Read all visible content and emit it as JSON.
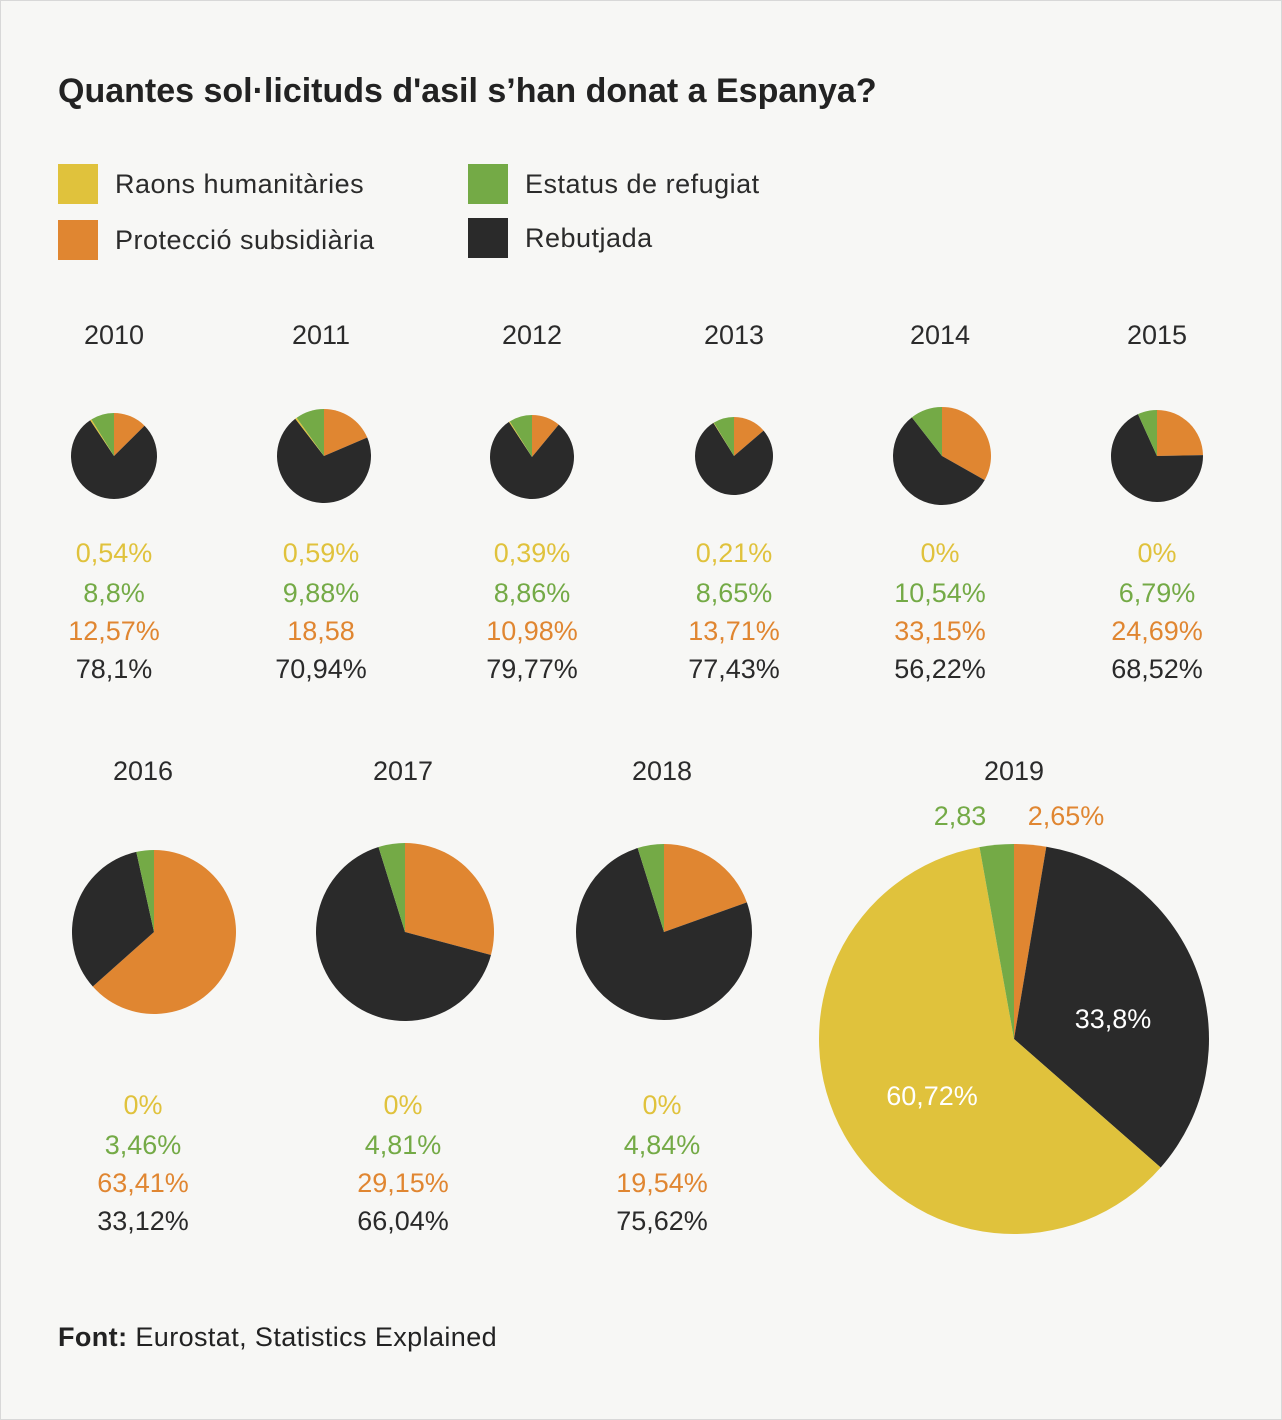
{
  "title": "Quantes sol·licituds d'asil s’han donat a Espanya?",
  "legend": [
    {
      "label": "Raons humanitàries",
      "color": "#e0c23c"
    },
    {
      "label": "Protecció subsidiària",
      "color": "#e08631"
    },
    {
      "label": "Estatus de refugiat",
      "color": "#74aa46"
    },
    {
      "label": "Rebutjada",
      "color": "#2a2a2a"
    }
  ],
  "source": {
    "prefix": "Font:",
    "text": "Eurostat, Statistics Explained"
  },
  "chart_data": {
    "type": "pie",
    "series_order": [
      "Raons humanitàries",
      "Estatus de refugiat",
      "Protecció subsidiària",
      "Rebutjada"
    ],
    "colors": {
      "humanitarian": "#e0c23c",
      "refugee": "#74aa46",
      "subsidiary": "#e08631",
      "rejected": "#2a2a2a"
    },
    "pies": [
      {
        "year": "2010",
        "humanitarian": 0.54,
        "refugee": 8.8,
        "subsidiary": 12.57,
        "rejected": 78.1,
        "labels": [
          "0,54%",
          "8,8%",
          "12,57%",
          "78,1%"
        ]
      },
      {
        "year": "2011",
        "humanitarian": 0.59,
        "refugee": 9.88,
        "subsidiary": 18.58,
        "rejected": 70.94,
        "labels": [
          "0,59%",
          "9,88%",
          "18,58",
          "70,94%"
        ]
      },
      {
        "year": "2012",
        "humanitarian": 0.39,
        "refugee": 8.86,
        "subsidiary": 10.98,
        "rejected": 79.77,
        "labels": [
          "0,39%",
          "8,86%",
          "10,98%",
          "79,77%"
        ]
      },
      {
        "year": "2013",
        "humanitarian": 0.21,
        "refugee": 8.65,
        "subsidiary": 13.71,
        "rejected": 77.43,
        "labels": [
          "0,21%",
          "8,65%",
          "13,71%",
          "77,43%"
        ]
      },
      {
        "year": "2014",
        "humanitarian": 0,
        "refugee": 10.54,
        "subsidiary": 33.15,
        "rejected": 56.22,
        "labels": [
          "0%",
          "10,54%",
          "33,15%",
          "56,22%"
        ]
      },
      {
        "year": "2015",
        "humanitarian": 0,
        "refugee": 6.79,
        "subsidiary": 24.69,
        "rejected": 68.52,
        "labels": [
          "0%",
          "6,79%",
          "24,69%",
          "68,52%"
        ]
      },
      {
        "year": "2016",
        "humanitarian": 0,
        "refugee": 3.46,
        "subsidiary": 63.41,
        "rejected": 33.12,
        "labels": [
          "0%",
          "3,46%",
          "63,41%",
          "33,12%"
        ]
      },
      {
        "year": "2017",
        "humanitarian": 0,
        "refugee": 4.81,
        "subsidiary": 29.15,
        "rejected": 66.04,
        "labels": [
          "0%",
          "4,81%",
          "29,15%",
          "66,04%"
        ]
      },
      {
        "year": "2018",
        "humanitarian": 0,
        "refugee": 4.84,
        "subsidiary": 19.54,
        "rejected": 75.62,
        "labels": [
          "0%",
          "4,84%",
          "19,54%",
          "75,62%"
        ]
      },
      {
        "year": "2019",
        "humanitarian": 60.72,
        "refugee": 2.83,
        "subsidiary": 2.65,
        "rejected": 33.8,
        "labels": [
          "60,72%",
          "2,83",
          "2,65%",
          "33,8%"
        ]
      }
    ]
  }
}
